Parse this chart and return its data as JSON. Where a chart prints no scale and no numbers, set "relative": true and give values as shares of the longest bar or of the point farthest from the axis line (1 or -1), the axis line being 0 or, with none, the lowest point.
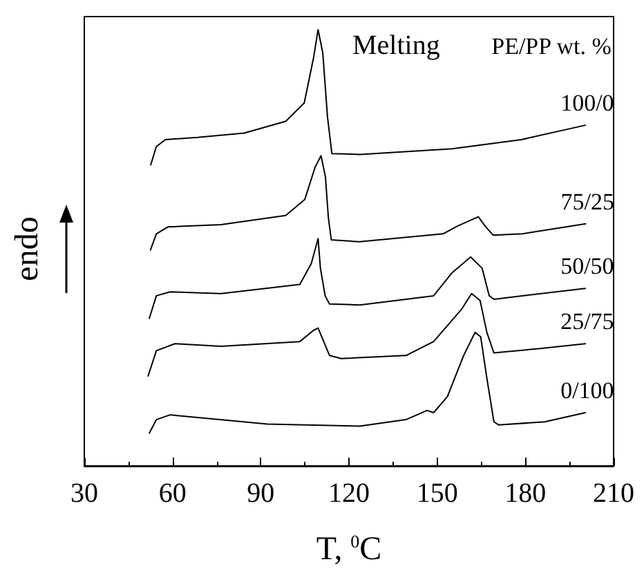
{
  "chart_data": {
    "type": "line",
    "xlabel": "T, $^{0}$C",
    "ylabel": "endo",
    "legend_title": "PE/PP wt. %",
    "annotations": [
      "Melting"
    ],
    "relative": true,
    "xlim": [
      30,
      210
    ],
    "xticks": [
      30,
      60,
      90,
      120,
      150,
      180,
      210
    ],
    "legend": false,
    "marker": "none",
    "line_style": "solid",
    "grid": false,
    "series": [
      {
        "name": "100/0",
        "color": "#000000",
        "x": [
          52.6,
          54.5,
          57.6,
          68.6,
          84.4,
          98.5,
          104.8,
          108,
          109.5,
          111.1,
          112.7,
          114.2,
          123.7,
          155.1,
          178.7,
          200.4
        ],
        "values": [
          0.69,
          0.732,
          0.748,
          0.753,
          0.763,
          0.79,
          0.832,
          0.937,
          1,
          0.947,
          0.8,
          0.716,
          0.714,
          0.727,
          0.748,
          0.781
        ]
      },
      {
        "name": "75/25",
        "color": "#000000",
        "x": [
          52.5,
          54.5,
          58.5,
          76.5,
          98.5,
          105,
          108.5,
          110.5,
          112,
          113,
          114,
          123.5,
          152,
          157,
          164,
          166.5,
          169,
          179,
          200.5
        ],
        "values": [
          0.495,
          0.532,
          0.548,
          0.553,
          0.574,
          0.611,
          0.685,
          0.711,
          0.663,
          0.569,
          0.518,
          0.514,
          0.532,
          0.55,
          0.571,
          0.548,
          0.529,
          0.532,
          0.555
        ]
      },
      {
        "name": "50/50",
        "color": "#000000",
        "x": [
          52.1,
          54.5,
          59.2,
          76.5,
          103.3,
          107.2,
          109.5,
          110.3,
          111.9,
          113.4,
          123.7,
          148.8,
          155.1,
          161.4,
          165.3,
          167.7,
          169.3,
          200.4
        ],
        "values": [
          0.338,
          0.39,
          0.399,
          0.395,
          0.416,
          0.464,
          0.521,
          0.453,
          0.39,
          0.371,
          0.369,
          0.39,
          0.443,
          0.479,
          0.453,
          0.39,
          0.382,
          0.407
        ]
      },
      {
        "name": "25/75",
        "color": "#000000",
        "x": [
          51.7,
          54.5,
          60.8,
          76.5,
          103.3,
          108,
          109.5,
          111.1,
          113.4,
          117.4,
          139.4,
          148.8,
          158.3,
          161.7,
          164.6,
          166.9,
          169.3,
          185,
          200.4
        ],
        "values": [
          0.206,
          0.264,
          0.28,
          0.274,
          0.285,
          0.311,
          0.316,
          0.29,
          0.253,
          0.246,
          0.253,
          0.285,
          0.359,
          0.395,
          0.379,
          0.306,
          0.259,
          0.269,
          0.28
        ]
      },
      {
        "name": "0/100",
        "color": "#000000",
        "x": [
          52.1,
          54.5,
          59.2,
          92.2,
          123.7,
          139.4,
          146.5,
          148.8,
          153.5,
          159,
          162.9,
          164.8,
          166.9,
          169.3,
          170.9,
          186.6,
          200.4
        ],
        "values": [
          0.075,
          0.106,
          0.117,
          0.096,
          0.091,
          0.106,
          0.127,
          0.122,
          0.159,
          0.253,
          0.306,
          0.296,
          0.201,
          0.101,
          0.094,
          0.101,
          0.122
        ]
      }
    ]
  }
}
